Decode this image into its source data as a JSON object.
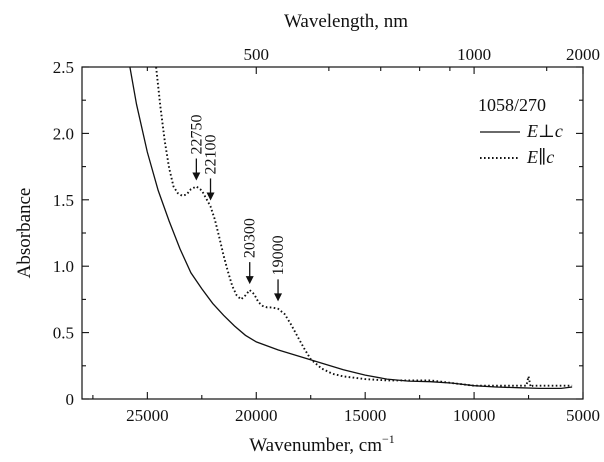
{
  "chart_data": {
    "type": "line",
    "xlabel": "Wavenumber, cm",
    "xlabel_superscript": "−1",
    "ylabel": "Absorbance",
    "top_axis_label": "Wavelength, nm",
    "x_reversed": true,
    "xlim": [
      28000,
      5000
    ],
    "ylim": [
      0,
      2.5
    ],
    "x_ticks": [
      25000,
      20000,
      15000,
      10000,
      5000
    ],
    "x_tick_labels": [
      "25000",
      "20000",
      "15000",
      "10000",
      "5000"
    ],
    "y_ticks": [
      0,
      0.5,
      1.0,
      1.5,
      2.0,
      2.5
    ],
    "y_tick_labels": [
      "0",
      "0.5",
      "1.0",
      "1.5",
      "2.0",
      "2.5"
    ],
    "top_ticks_nm": [
      500,
      1000,
      2000
    ],
    "top_tick_labels": [
      "500",
      "1000",
      "2000"
    ],
    "legend_title": "1058/270",
    "legend_position": "top-right",
    "series": [
      {
        "name": "E⊥c",
        "style": "solid",
        "x": [
          25800,
          25500,
          25000,
          24500,
          24000,
          23500,
          23000,
          22500,
          22000,
          21500,
          21000,
          20500,
          20000,
          19000,
          18000,
          17000,
          16000,
          15000,
          14000,
          13000,
          12000,
          11000,
          10000,
          9000,
          8000,
          7000,
          6000,
          5500
        ],
        "y": [
          2.5,
          2.22,
          1.86,
          1.57,
          1.34,
          1.13,
          0.95,
          0.83,
          0.72,
          0.63,
          0.55,
          0.48,
          0.43,
          0.37,
          0.32,
          0.27,
          0.22,
          0.18,
          0.15,
          0.135,
          0.13,
          0.12,
          0.1,
          0.09,
          0.085,
          0.08,
          0.08,
          0.09
        ]
      },
      {
        "name": "E∥c",
        "style": "dotted",
        "x": [
          24600,
          24400,
          24200,
          24000,
          23800,
          23600,
          23400,
          23200,
          23000,
          22750,
          22500,
          22300,
          22100,
          21900,
          21700,
          21500,
          21300,
          21100,
          20900,
          20700,
          20500,
          20300,
          20100,
          19900,
          19700,
          19500,
          19300,
          19000,
          18700,
          18400,
          18100,
          17800,
          17500,
          17000,
          16500,
          16000,
          15000,
          14000,
          13000,
          12000,
          11000,
          10000,
          9000,
          8000,
          7600,
          7500,
          7400,
          7300,
          7000,
          6500,
          6000,
          5500
        ],
        "y": [
          2.5,
          2.2,
          1.94,
          1.74,
          1.6,
          1.55,
          1.53,
          1.54,
          1.58,
          1.6,
          1.57,
          1.51,
          1.45,
          1.35,
          1.22,
          1.08,
          0.96,
          0.85,
          0.78,
          0.75,
          0.78,
          0.82,
          0.79,
          0.73,
          0.7,
          0.69,
          0.69,
          0.68,
          0.64,
          0.56,
          0.47,
          0.38,
          0.3,
          0.23,
          0.19,
          0.17,
          0.15,
          0.14,
          0.14,
          0.14,
          0.12,
          0.1,
          0.1,
          0.1,
          0.1,
          0.17,
          0.09,
          0.1,
          0.1,
          0.1,
          0.1,
          0.1
        ]
      }
    ],
    "annotations": [
      {
        "text": "22750",
        "x": 22750,
        "y": 1.6
      },
      {
        "text": "22100",
        "x": 22100,
        "y": 1.45
      },
      {
        "text": "20300",
        "x": 20300,
        "y": 0.82
      },
      {
        "text": "19000",
        "x": 19000,
        "y": 0.69
      }
    ]
  }
}
